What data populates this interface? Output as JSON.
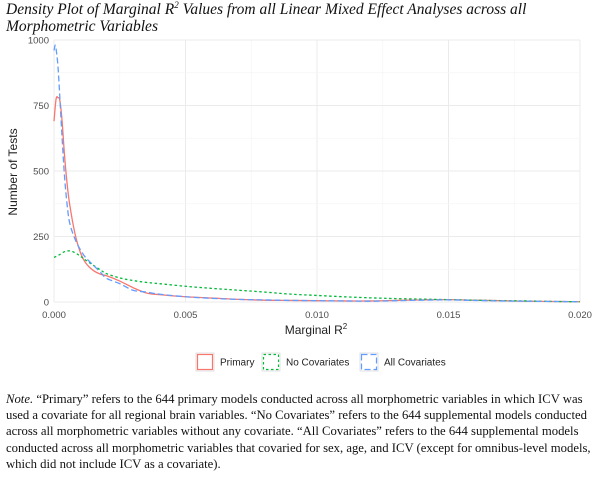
{
  "figure": {
    "title_main": "Density Plot of Marginal R",
    "title_sup": "2",
    "title_rest": " Values from all Linear Mixed Effect Analyses across all Morphometric Variables",
    "note_label": "Note.",
    "note_text": " “Primary” refers to the 644 primary models conducted across all morphometric variables in which ICV was used a covariate for all regional brain variables. “No Covariates” refers to the 644 supplemental models conducted across all morphometric variables without any covariate. “All Covariates” refers to the 644 supplemental models conducted across all morphometric variables that covaried for sex, age, and ICV (except for omnibus-level models, which did not include ICV as a covariate)."
  },
  "chart_data": {
    "type": "line",
    "xlabel_main": "Marginal R",
    "xlabel_sup": "2",
    "ylabel": "Number of Tests",
    "xlim": [
      0,
      0.02
    ],
    "ylim": [
      0,
      1000
    ],
    "xticks": [
      0,
      0.005,
      0.01,
      0.015,
      0.02
    ],
    "xtick_labels": [
      "0.000",
      "0.005",
      "0.010",
      "0.015",
      "0.020"
    ],
    "yticks": [
      0,
      250,
      500,
      750,
      1000
    ],
    "ytick_labels": [
      "0",
      "250",
      "500",
      "750",
      "1000"
    ],
    "grid": true,
    "legend_position": "bottom",
    "series": [
      {
        "name": "Primary",
        "color": "#f8766d",
        "dash": "solid",
        "x": [
          0.0,
          8e-05,
          0.00015,
          0.00022,
          0.0003,
          0.0004,
          0.0005,
          0.0006,
          0.0008,
          0.001,
          0.0012,
          0.0015,
          0.0018,
          0.002,
          0.0025,
          0.003,
          0.0035,
          0.004,
          0.005,
          0.006,
          0.007,
          0.008,
          0.009,
          0.01,
          0.011,
          0.012,
          0.013,
          0.014,
          0.015,
          0.016,
          0.017,
          0.018,
          0.019,
          0.02
        ],
        "y": [
          690,
          775,
          780,
          770,
          700,
          560,
          450,
          370,
          260,
          190,
          150,
          120,
          105,
          100,
          80,
          55,
          35,
          28,
          20,
          15,
          10,
          7,
          6,
          5,
          4,
          4,
          6,
          8,
          9,
          7,
          5,
          3,
          2,
          1
        ]
      },
      {
        "name": "No Covariates",
        "color": "#00ba38",
        "dash": "dotted",
        "x": [
          0.0,
          0.0002,
          0.0004,
          0.0006,
          0.0008,
          0.001,
          0.0012,
          0.0015,
          0.0018,
          0.002,
          0.0025,
          0.003,
          0.0035,
          0.004,
          0.005,
          0.006,
          0.007,
          0.008,
          0.009,
          0.01,
          0.011,
          0.012,
          0.013,
          0.014,
          0.015,
          0.016,
          0.017,
          0.018,
          0.019,
          0.02
        ],
        "y": [
          170,
          180,
          192,
          195,
          188,
          175,
          160,
          140,
          120,
          108,
          92,
          82,
          75,
          70,
          60,
          52,
          45,
          38,
          30,
          25,
          20,
          16,
          13,
          11,
          9,
          7,
          5,
          4,
          2,
          1
        ]
      },
      {
        "name": "All Covariates",
        "color": "#619cff",
        "dash": "dashed",
        "x": [
          0.0,
          5e-05,
          0.0001,
          0.00015,
          0.0002,
          0.0003,
          0.0004,
          0.0005,
          0.0006,
          0.0008,
          0.001,
          0.0012,
          0.0015,
          0.0018,
          0.002,
          0.0025,
          0.003,
          0.0035,
          0.004,
          0.005,
          0.006,
          0.007,
          0.008,
          0.009,
          0.01,
          0.011,
          0.012,
          0.013,
          0.014,
          0.015,
          0.016,
          0.017,
          0.018,
          0.019,
          0.02
        ],
        "y": [
          960,
          980,
          950,
          900,
          820,
          640,
          480,
          370,
          300,
          240,
          200,
          170,
          140,
          110,
          90,
          70,
          45,
          38,
          30,
          20,
          14,
          10,
          8,
          6,
          5,
          4,
          3,
          5,
          7,
          8,
          6,
          4,
          3,
          2,
          1
        ]
      }
    ]
  }
}
